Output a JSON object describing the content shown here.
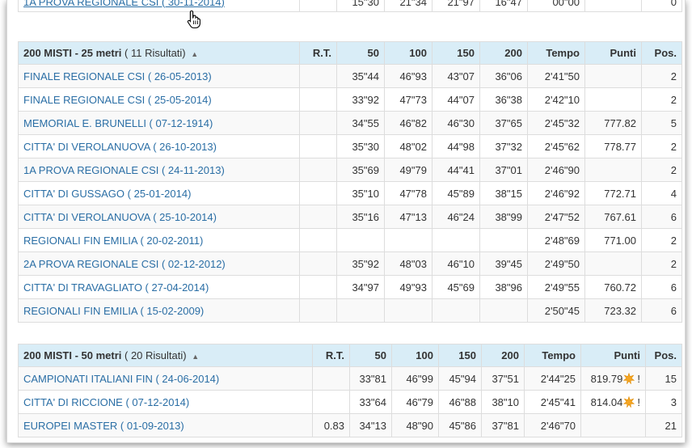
{
  "partial_top_row": {
    "race": "1A PROVA REGIONALE CSI ( 30-11-2014)",
    "s50": "15\"30",
    "s100": "21\"34",
    "s150": "21\"97",
    "s200": "16\"47",
    "tempo": "00\"00",
    "pos": "0"
  },
  "tables": [
    {
      "title": "200 MISTI - 25 metri",
      "count": "( 11 Risultati)",
      "headers": {
        "rt": "R.T.",
        "c50": "50",
        "c100": "100",
        "c150": "150",
        "c200": "200",
        "tempo": "Tempo",
        "punti": "Punti",
        "pos": "Pos."
      },
      "rows": [
        {
          "race": "FINALE REGIONALE CSI ( 26-05-2013)",
          "rt": "",
          "s50": "35\"44",
          "s100": "46\"93",
          "s150": "43\"07",
          "s200": "36\"06",
          "tempo": "2'41\"50",
          "punti": "",
          "pos": "2"
        },
        {
          "race": "FINALE REGIONALE CSI ( 25-05-2014)",
          "rt": "",
          "s50": "33\"92",
          "s100": "47\"73",
          "s150": "44\"07",
          "s200": "36\"38",
          "tempo": "2'42\"10",
          "punti": "",
          "pos": "2"
        },
        {
          "race": "MEMORIAL E. BRUNELLI ( 07-12-1914)",
          "rt": "",
          "s50": "34\"55",
          "s100": "46\"82",
          "s150": "46\"30",
          "s200": "37\"65",
          "tempo": "2'45\"32",
          "punti": "777.82",
          "pos": "5"
        },
        {
          "race": "CITTA' DI VEROLANUOVA ( 26-10-2013)",
          "rt": "",
          "s50": "35\"30",
          "s100": "48\"02",
          "s150": "44\"98",
          "s200": "37\"32",
          "tempo": "2'45\"62",
          "punti": "778.77",
          "pos": "2"
        },
        {
          "race": "1A PROVA REGIONALE CSI ( 24-11-2013)",
          "rt": "",
          "s50": "35\"69",
          "s100": "49\"79",
          "s150": "44\"41",
          "s200": "37\"01",
          "tempo": "2'46\"90",
          "punti": "",
          "pos": "2"
        },
        {
          "race": "CITTA' DI GUSSAGO ( 25-01-2014)",
          "rt": "",
          "s50": "35\"10",
          "s100": "47\"78",
          "s150": "45\"89",
          "s200": "38\"15",
          "tempo": "2'46\"92",
          "punti": "772.71",
          "pos": "4"
        },
        {
          "race": "CITTA' DI VEROLANUOVA ( 25-10-2014)",
          "rt": "",
          "s50": "35\"16",
          "s100": "47\"13",
          "s150": "46\"24",
          "s200": "38\"99",
          "tempo": "2'47\"52",
          "punti": "767.61",
          "pos": "6"
        },
        {
          "race": "REGIONALI FIN EMILIA ( 20-02-2011)",
          "rt": "",
          "s50": "",
          "s100": "",
          "s150": "",
          "s200": "",
          "tempo": "2'48\"69",
          "punti": "771.00",
          "pos": "2"
        },
        {
          "race": "2A PROVA REGIONALE CSI ( 02-12-2012)",
          "rt": "",
          "s50": "35\"92",
          "s100": "48\"03",
          "s150": "46\"10",
          "s200": "39\"45",
          "tempo": "2'49\"50",
          "punti": "",
          "pos": "2"
        },
        {
          "race": "CITTA' DI TRAVAGLIATO ( 27-04-2014)",
          "rt": "",
          "s50": "34\"97",
          "s100": "49\"93",
          "s150": "45\"69",
          "s200": "38\"96",
          "tempo": "2'49\"55",
          "punti": "760.72",
          "pos": "6"
        },
        {
          "race": "REGIONALI FIN EMILIA ( 15-02-2009)",
          "rt": "",
          "s50": "",
          "s100": "",
          "s150": "",
          "s200": "",
          "tempo": "2'50\"45",
          "punti": "723.32",
          "pos": "6"
        }
      ]
    },
    {
      "title": "200 MISTI - 50 metri",
      "count": "( 20 Risultati)",
      "headers": {
        "rt": "R.T.",
        "c50": "50",
        "c100": "100",
        "c150": "150",
        "c200": "200",
        "tempo": "Tempo",
        "punti": "Punti",
        "pos": "Pos."
      },
      "rows": [
        {
          "race": "CAMPIONATI ITALIANI FIN ( 24-06-2014)",
          "rt": "",
          "s50": "33\"81",
          "s100": "46\"99",
          "s150": "45\"94",
          "s200": "37\"51",
          "tempo": "2'44\"25",
          "punti": "819.79",
          "star": true,
          "bang": "!",
          "pos": "15"
        },
        {
          "race": "CITTA' DI RICCIONE ( 07-12-2014)",
          "rt": "",
          "s50": "33\"64",
          "s100": "46\"79",
          "s150": "46\"88",
          "s200": "38\"10",
          "tempo": "2'45\"41",
          "punti": "814.04",
          "star": true,
          "bang": "!",
          "pos": "3"
        },
        {
          "race": "EUROPEI MASTER ( 01-09-2013)",
          "rt": "0.83",
          "s50": "34\"13",
          "s100": "48\"90",
          "s150": "45\"86",
          "s200": "37\"81",
          "tempo": "2'46\"70",
          "punti": "",
          "pos": "21"
        }
      ]
    }
  ],
  "colors": {
    "link": "#2a6ea5",
    "header_bg": "#d9edf7",
    "star": "#f5a623"
  },
  "icons": {
    "sort": "sort-up-icon",
    "record": "star-icon",
    "cursor": "hand-pointer-icon"
  }
}
